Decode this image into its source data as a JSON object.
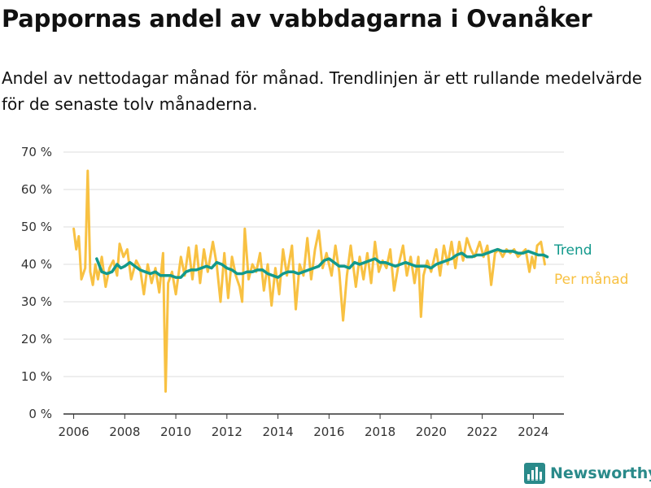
{
  "header": {
    "title": "Pappornas andel av vabbdagarna i Ovanåker",
    "subtitle": "Andel av nettodagar månad för månad. Trendlinjen är ett rullande medelvärde för de senaste tolv månaderna."
  },
  "brand": {
    "name": "Newsworthy",
    "icon": "bar-chart-logo-icon"
  },
  "colors": {
    "monthly": "#f8c142",
    "trend": "#12998c",
    "grid": "#dddddd",
    "axis": "#333333",
    "brand": "#2a8a8a"
  },
  "chart_data": {
    "type": "line",
    "title": "",
    "xlabel": "",
    "ylabel": "",
    "xlim": [
      2005.6,
      2025.2
    ],
    "ylim": [
      0,
      70
    ],
    "x_ticks": [
      2006,
      2008,
      2010,
      2012,
      2014,
      2016,
      2018,
      2020,
      2022,
      2024
    ],
    "x_tick_labels": [
      "2006",
      "2008",
      "2010",
      "2012",
      "2014",
      "2016",
      "2018",
      "2020",
      "2022",
      "2024"
    ],
    "y_ticks": [
      0,
      10,
      20,
      30,
      40,
      50,
      60,
      70
    ],
    "y_tick_labels": [
      "0 %",
      "10 %",
      "20 %",
      "30 %",
      "40 %",
      "50 %",
      "60 %",
      "70 %"
    ],
    "grid": "horizontal",
    "legend": "right end labels",
    "series": [
      {
        "name": "Per månad",
        "color": "#f8c142",
        "data": [
          [
            2006.0,
            49.5
          ],
          [
            2006.1,
            44
          ],
          [
            2006.2,
            47.5
          ],
          [
            2006.3,
            36
          ],
          [
            2006.45,
            39
          ],
          [
            2006.55,
            65
          ],
          [
            2006.65,
            38
          ],
          [
            2006.75,
            34.5
          ],
          [
            2006.85,
            40
          ],
          [
            2006.95,
            36
          ],
          [
            2007.1,
            42
          ],
          [
            2007.25,
            34
          ],
          [
            2007.4,
            39
          ],
          [
            2007.55,
            41
          ],
          [
            2007.7,
            37
          ],
          [
            2007.8,
            45.5
          ],
          [
            2007.95,
            42
          ],
          [
            2008.1,
            44
          ],
          [
            2008.25,
            36
          ],
          [
            2008.45,
            41
          ],
          [
            2008.6,
            39
          ],
          [
            2008.75,
            32
          ],
          [
            2008.9,
            40
          ],
          [
            2009.05,
            35
          ],
          [
            2009.2,
            39
          ],
          [
            2009.35,
            32.5
          ],
          [
            2009.5,
            43
          ],
          [
            2009.6,
            6
          ],
          [
            2009.7,
            35
          ],
          [
            2009.85,
            38
          ],
          [
            2010.0,
            32
          ],
          [
            2010.2,
            42
          ],
          [
            2010.35,
            37
          ],
          [
            2010.5,
            44.5
          ],
          [
            2010.65,
            36
          ],
          [
            2010.8,
            45
          ],
          [
            2010.95,
            35
          ],
          [
            2011.1,
            44
          ],
          [
            2011.25,
            38
          ],
          [
            2011.45,
            46
          ],
          [
            2011.6,
            40
          ],
          [
            2011.75,
            30
          ],
          [
            2011.9,
            43
          ],
          [
            2012.05,
            31
          ],
          [
            2012.2,
            42
          ],
          [
            2012.35,
            37
          ],
          [
            2012.5,
            34
          ],
          [
            2012.6,
            30
          ],
          [
            2012.7,
            49.5
          ],
          [
            2012.85,
            36
          ],
          [
            2013.0,
            40
          ],
          [
            2013.15,
            38
          ],
          [
            2013.3,
            43
          ],
          [
            2013.45,
            33
          ],
          [
            2013.6,
            40
          ],
          [
            2013.75,
            29
          ],
          [
            2013.9,
            39
          ],
          [
            2014.05,
            32
          ],
          [
            2014.2,
            44
          ],
          [
            2014.35,
            37
          ],
          [
            2014.55,
            45
          ],
          [
            2014.7,
            28
          ],
          [
            2014.85,
            40
          ],
          [
            2015.0,
            37
          ],
          [
            2015.15,
            47
          ],
          [
            2015.3,
            36
          ],
          [
            2015.45,
            44
          ],
          [
            2015.6,
            49
          ],
          [
            2015.75,
            39
          ],
          [
            2015.9,
            43
          ],
          [
            2016.1,
            37
          ],
          [
            2016.25,
            45
          ],
          [
            2016.4,
            38
          ],
          [
            2016.55,
            25
          ],
          [
            2016.7,
            37
          ],
          [
            2016.85,
            45
          ],
          [
            2017.05,
            34
          ],
          [
            2017.2,
            42
          ],
          [
            2017.35,
            36
          ],
          [
            2017.5,
            43
          ],
          [
            2017.65,
            35
          ],
          [
            2017.8,
            46
          ],
          [
            2017.95,
            38
          ],
          [
            2018.1,
            41
          ],
          [
            2018.25,
            39
          ],
          [
            2018.4,
            44
          ],
          [
            2018.55,
            33
          ],
          [
            2018.7,
            39
          ],
          [
            2018.9,
            45
          ],
          [
            2019.05,
            37
          ],
          [
            2019.2,
            42
          ],
          [
            2019.35,
            35
          ],
          [
            2019.5,
            42
          ],
          [
            2019.6,
            26
          ],
          [
            2019.7,
            37
          ],
          [
            2019.85,
            41
          ],
          [
            2020.0,
            38
          ],
          [
            2020.2,
            44
          ],
          [
            2020.35,
            37
          ],
          [
            2020.5,
            45
          ],
          [
            2020.65,
            40
          ],
          [
            2020.8,
            46
          ],
          [
            2020.95,
            39
          ],
          [
            2021.1,
            46
          ],
          [
            2021.25,
            41
          ],
          [
            2021.4,
            47
          ],
          [
            2021.55,
            44
          ],
          [
            2021.7,
            42
          ],
          [
            2021.9,
            46
          ],
          [
            2022.05,
            42
          ],
          [
            2022.2,
            45
          ],
          [
            2022.35,
            34.5
          ],
          [
            2022.5,
            43
          ],
          [
            2022.65,
            44
          ],
          [
            2022.8,
            42
          ],
          [
            2022.95,
            44
          ],
          [
            2023.1,
            43
          ],
          [
            2023.25,
            44
          ],
          [
            2023.4,
            42
          ],
          [
            2023.55,
            43
          ],
          [
            2023.7,
            44
          ],
          [
            2023.85,
            38
          ],
          [
            2023.95,
            42
          ],
          [
            2024.05,
            39
          ],
          [
            2024.15,
            45
          ],
          [
            2024.3,
            46
          ],
          [
            2024.45,
            40
          ]
        ]
      },
      {
        "name": "Trend",
        "color": "#12998c",
        "data": [
          [
            2006.9,
            41.5
          ],
          [
            2007.1,
            38
          ],
          [
            2007.3,
            37.5
          ],
          [
            2007.5,
            38
          ],
          [
            2007.7,
            40
          ],
          [
            2007.85,
            39
          ],
          [
            2008.0,
            39.5
          ],
          [
            2008.2,
            40.5
          ],
          [
            2008.4,
            39.5
          ],
          [
            2008.6,
            38.5
          ],
          [
            2008.8,
            38
          ],
          [
            2009.0,
            37.5
          ],
          [
            2009.2,
            38
          ],
          [
            2009.4,
            37
          ],
          [
            2009.6,
            37
          ],
          [
            2009.8,
            37
          ],
          [
            2010.0,
            36.5
          ],
          [
            2010.2,
            36.5
          ],
          [
            2010.4,
            38
          ],
          [
            2010.6,
            38.5
          ],
          [
            2010.8,
            38.5
          ],
          [
            2011.0,
            39
          ],
          [
            2011.2,
            39.5
          ],
          [
            2011.4,
            39
          ],
          [
            2011.6,
            40.5
          ],
          [
            2011.8,
            40
          ],
          [
            2012.0,
            39
          ],
          [
            2012.2,
            38.5
          ],
          [
            2012.4,
            37.5
          ],
          [
            2012.6,
            37.5
          ],
          [
            2012.8,
            38
          ],
          [
            2013.0,
            38
          ],
          [
            2013.2,
            38.5
          ],
          [
            2013.4,
            38.5
          ],
          [
            2013.6,
            37.5
          ],
          [
            2013.8,
            37
          ],
          [
            2014.0,
            36.5
          ],
          [
            2014.2,
            37.5
          ],
          [
            2014.4,
            38
          ],
          [
            2014.6,
            38
          ],
          [
            2014.8,
            37.5
          ],
          [
            2015.0,
            38
          ],
          [
            2015.2,
            38.5
          ],
          [
            2015.4,
            39
          ],
          [
            2015.6,
            39.5
          ],
          [
            2015.8,
            41
          ],
          [
            2016.0,
            41.5
          ],
          [
            2016.2,
            40.5
          ],
          [
            2016.4,
            39.5
          ],
          [
            2016.6,
            39.5
          ],
          [
            2016.8,
            39
          ],
          [
            2017.0,
            40.5
          ],
          [
            2017.2,
            40
          ],
          [
            2017.4,
            40.5
          ],
          [
            2017.6,
            41
          ],
          [
            2017.8,
            41.5
          ],
          [
            2018.0,
            40.5
          ],
          [
            2018.2,
            40.5
          ],
          [
            2018.4,
            40
          ],
          [
            2018.6,
            39.5
          ],
          [
            2018.8,
            40
          ],
          [
            2019.0,
            40.5
          ],
          [
            2019.2,
            40
          ],
          [
            2019.4,
            39.5
          ],
          [
            2019.6,
            39.5
          ],
          [
            2019.8,
            39.5
          ],
          [
            2020.0,
            39
          ],
          [
            2020.2,
            40
          ],
          [
            2020.4,
            40.5
          ],
          [
            2020.6,
            41
          ],
          [
            2020.8,
            41.5
          ],
          [
            2021.0,
            42.5
          ],
          [
            2021.2,
            43
          ],
          [
            2021.4,
            42
          ],
          [
            2021.6,
            42
          ],
          [
            2021.8,
            42.5
          ],
          [
            2022.0,
            42.5
          ],
          [
            2022.2,
            43
          ],
          [
            2022.4,
            43.5
          ],
          [
            2022.6,
            44
          ],
          [
            2022.8,
            43.5
          ],
          [
            2023.0,
            43.5
          ],
          [
            2023.2,
            43.5
          ],
          [
            2023.4,
            43
          ],
          [
            2023.6,
            43
          ],
          [
            2023.8,
            43.5
          ],
          [
            2024.0,
            43
          ],
          [
            2024.2,
            42.5
          ],
          [
            2024.4,
            42.5
          ],
          [
            2024.55,
            42
          ]
        ]
      }
    ]
  }
}
